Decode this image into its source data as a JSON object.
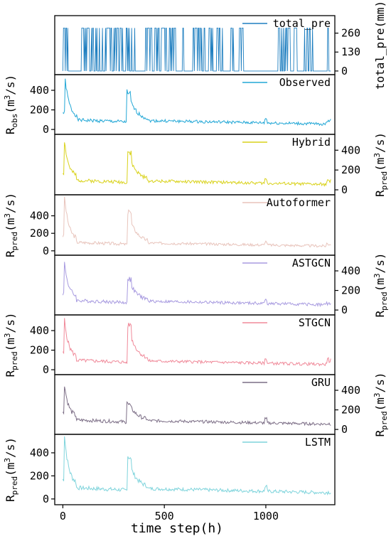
{
  "chart_data": {
    "type": "line",
    "x_axis": {
      "label": "time step(h)",
      "ticks": [
        0,
        500,
        1000
      ],
      "range": [
        -40,
        1340
      ]
    },
    "panels": [
      {
        "key": "total_pre",
        "legend": "total_pre",
        "color": "#1f7fc0",
        "ylabel": "total_pre(mm)",
        "ylabel_side": "right",
        "yticks": [
          0,
          130,
          260
        ],
        "ylim": [
          -25,
          380
        ],
        "kind": "rain"
      },
      {
        "key": "observed",
        "legend": "Observed",
        "color": "#22a7d6",
        "ylabel_main": "R",
        "ylabel_sub": "obs",
        "ylabel_unit": "(m",
        "ylabel_sup": "3",
        "ylabel_tail": "/s)",
        "ylabel_side": "left",
        "yticks": [
          0,
          200,
          400
        ],
        "ylim": [
          -50,
          560
        ],
        "seed": 1,
        "spike1": [
          10,
          420
        ],
        "spike2": [
          315,
          420
        ],
        "late": [
          1310,
          130
        ]
      },
      {
        "key": "hybrid",
        "legend": "Hybrid",
        "color": "#d9d21a",
        "ylabel_main": "R",
        "ylabel_sub": "pred",
        "ylabel_unit": "(m",
        "ylabel_sup": "3",
        "ylabel_tail": "/s)",
        "ylabel_side": "right",
        "yticks": [
          0,
          200,
          400
        ],
        "ylim": [
          -50,
          560
        ],
        "seed": 2,
        "spike1": [
          5,
          430
        ],
        "spike2": [
          318,
          410
        ],
        "late": [
          1312,
          110
        ]
      },
      {
        "key": "autoformer",
        "legend": "Autoformer",
        "color": "#e8c4bc",
        "ylabel_main": "R",
        "ylabel_sub": "pred",
        "ylabel_unit": "(m",
        "ylabel_sup": "3",
        "ylabel_tail": "/s)",
        "ylabel_side": "left",
        "yticks": [
          0,
          200,
          400
        ],
        "ylim": [
          -50,
          640
        ],
        "seed": 3,
        "spike1": [
          5,
          580
        ],
        "spike2": [
          320,
          470
        ],
        "late": [
          1312,
          110
        ]
      },
      {
        "key": "astgcn",
        "legend": "ASTGCN",
        "color": "#a89be0",
        "ylabel_main": "R",
        "ylabel_sub": "pred",
        "ylabel_unit": "(m",
        "ylabel_sup": "3",
        "ylabel_tail": "/s)",
        "ylabel_side": "right",
        "yticks": [
          0,
          200,
          400
        ],
        "ylim": [
          -50,
          560
        ],
        "seed": 4,
        "spike1": [
          5,
          420
        ],
        "spike2": [
          318,
          340
        ],
        "late": [
          1312,
          90
        ]
      },
      {
        "key": "stgcn",
        "legend": "STGCN",
        "color": "#f08a9a",
        "ylabel_main": "R",
        "ylabel_sub": "pred",
        "ylabel_unit": "(m",
        "ylabel_sup": "3",
        "ylabel_tail": "/s)",
        "ylabel_side": "left",
        "yticks": [
          0,
          200,
          400
        ],
        "ylim": [
          -50,
          560
        ],
        "seed": 5,
        "spike1": [
          5,
          450
        ],
        "spike2": [
          320,
          490
        ],
        "late": [
          1312,
          130
        ]
      },
      {
        "key": "gru",
        "legend": "GRU",
        "color": "#7c6e86",
        "ylabel_main": "R",
        "ylabel_sub": "pred",
        "ylabel_unit": "(m",
        "ylabel_sup": "3",
        "ylabel_tail": "/s)",
        "ylabel_side": "right",
        "yticks": [
          0,
          200,
          400
        ],
        "ylim": [
          -50,
          560
        ],
        "seed": 6,
        "spike1": [
          5,
          390
        ],
        "spike2": [
          315,
          300
        ],
        "late": [
          1312,
          80
        ]
      },
      {
        "key": "lstm",
        "legend": "LSTM",
        "color": "#7fd4dc",
        "ylabel_main": "R",
        "ylabel_sub": "pred",
        "ylabel_unit": "(m",
        "ylabel_sup": "3",
        "ylabel_tail": "/s)",
        "ylabel_side": "left",
        "yticks": [
          0,
          200,
          400
        ],
        "ylim": [
          -50,
          560
        ],
        "seed": 7,
        "spike1": [
          8,
          430
        ],
        "spike2": [
          318,
          370
        ],
        "late": [
          1312,
          80
        ]
      }
    ]
  }
}
